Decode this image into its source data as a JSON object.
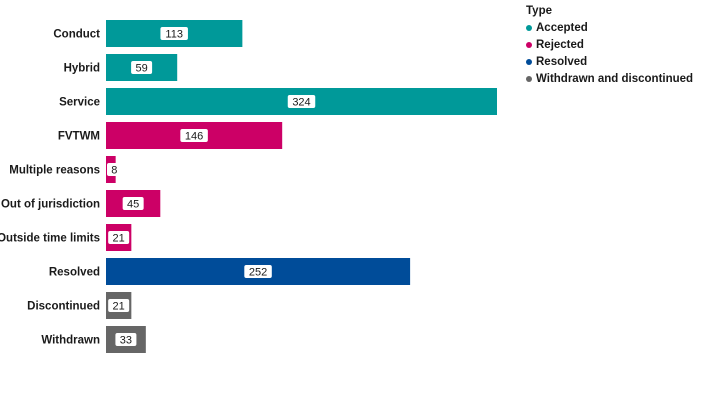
{
  "chart_data": {
    "type": "bar",
    "orientation": "horizontal",
    "title": "",
    "xlabel": "",
    "ylabel": "",
    "categories": [
      "Conduct",
      "Hybrid",
      "Service",
      "FVTWM",
      "Multiple reasons",
      "Out of jurisdiction",
      "Outside time limits",
      "Resolved",
      "Discontinued",
      "Withdrawn"
    ],
    "values": [
      113,
      59,
      324,
      146,
      8,
      45,
      21,
      252,
      21,
      33
    ],
    "category_type": [
      "Accepted",
      "Accepted",
      "Accepted",
      "Rejected",
      "Rejected",
      "Rejected",
      "Rejected",
      "Resolved",
      "Withdrawn and discontinued",
      "Withdrawn and discontinued"
    ],
    "xlim": [
      0,
      324
    ],
    "grid": false,
    "legend": {
      "title": "Type",
      "placement": "top-right",
      "entries": [
        {
          "name": "Accepted",
          "color": "#009999"
        },
        {
          "name": "Rejected",
          "color": "#cc0066"
        },
        {
          "name": "Resolved",
          "color": "#004c99"
        },
        {
          "name": "Withdrawn and discontinued",
          "color": "#666666"
        }
      ]
    }
  }
}
